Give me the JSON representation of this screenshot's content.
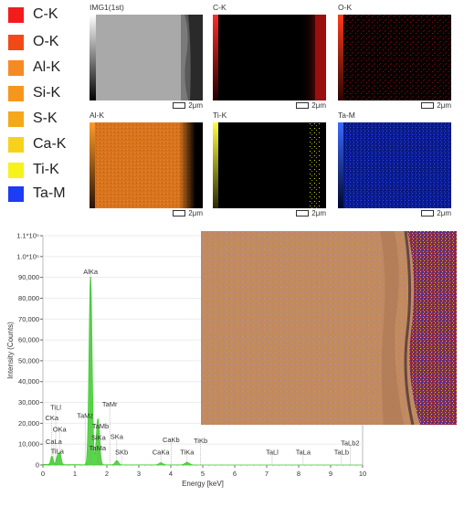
{
  "legend": [
    {
      "label": "C-K",
      "color": "#f21c1c"
    },
    {
      "label": "O-K",
      "color": "#f24a16"
    },
    {
      "label": "Al-K",
      "color": "#f58a24"
    },
    {
      "label": "Si-K",
      "color": "#f7961c"
    },
    {
      "label": "S-K",
      "color": "#f5a81c"
    },
    {
      "label": "Ca-K",
      "color": "#f7d21c"
    },
    {
      "label": "Ti-K",
      "color": "#f5f21c"
    },
    {
      "label": "Ta-M",
      "color": "#1c3cf5"
    }
  ],
  "maps": [
    {
      "title": "IMG1(1st)",
      "scale": "2μm"
    },
    {
      "title": "C-K",
      "scale": "2μm"
    },
    {
      "title": "O-K",
      "scale": "2μm"
    },
    {
      "title": "Al-K",
      "scale": "2μm"
    },
    {
      "title": "Ti-K",
      "scale": "2μm"
    },
    {
      "title": "Ta-M",
      "scale": "2μm"
    }
  ],
  "chart_data": {
    "type": "line",
    "xlabel": "Energy [keV]",
    "ylabel": "Intensity (Counts)",
    "xlim": [
      0,
      10
    ],
    "ylim": [
      0,
      110000
    ],
    "xticks": [
      "0",
      "1",
      "2",
      "3",
      "4",
      "5",
      "6",
      "7",
      "8",
      "9",
      "10"
    ],
    "yticks": [
      {
        "v": 0,
        "label": "0"
      },
      {
        "v": 10000,
        "label": "10,000"
      },
      {
        "v": 20000,
        "label": "20,000"
      },
      {
        "v": 30000,
        "label": "30,000"
      },
      {
        "v": 40000,
        "label": "40,000"
      },
      {
        "v": 50000,
        "label": "50,000"
      },
      {
        "v": 60000,
        "label": "60,000"
      },
      {
        "v": 70000,
        "label": "70,000"
      },
      {
        "v": 80000,
        "label": "80,000"
      },
      {
        "v": 90000,
        "label": "90,000"
      },
      {
        "v": 100000,
        "label": "1.0*10⁵"
      },
      {
        "v": 110000,
        "label": "1.1*10⁵"
      }
    ],
    "series": [
      {
        "color": "#3ccf2a",
        "peaks": [
          {
            "x": 0.28,
            "y": 4000
          },
          {
            "x": 0.45,
            "y": 3500
          },
          {
            "x": 0.53,
            "y": 5500
          },
          {
            "x": 1.49,
            "y": 90000
          },
          {
            "x": 1.71,
            "y": 15000
          },
          {
            "x": 1.74,
            "y": 8000
          },
          {
            "x": 2.31,
            "y": 2000
          },
          {
            "x": 3.69,
            "y": 1000
          },
          {
            "x": 4.51,
            "y": 1200
          }
        ]
      }
    ],
    "annotations": [
      {
        "text": "AlKa",
        "x": 1.49,
        "y": 91500
      },
      {
        "text": "TiLl",
        "x": 0.4,
        "y": 26500
      },
      {
        "text": "CKa",
        "x": 0.28,
        "y": 21500
      },
      {
        "text": "OKa",
        "x": 0.52,
        "y": 16000
      },
      {
        "text": "CaLa",
        "x": 0.34,
        "y": 10000
      },
      {
        "text": "TiLa",
        "x": 0.45,
        "y": 5500
      },
      {
        "text": "TaMz",
        "x": 1.32,
        "y": 22500
      },
      {
        "text": "TaMr",
        "x": 2.09,
        "y": 28000
      },
      {
        "text": "TaMb",
        "x": 1.8,
        "y": 17500
      },
      {
        "text": "SiKa",
        "x": 1.74,
        "y": 12000
      },
      {
        "text": "TaMa",
        "x": 1.71,
        "y": 7000
      },
      {
        "text": "SKa",
        "x": 2.31,
        "y": 12500
      },
      {
        "text": "SKb",
        "x": 2.46,
        "y": 5000
      },
      {
        "text": "CaKb",
        "x": 4.01,
        "y": 11000
      },
      {
        "text": "CaKa",
        "x": 3.69,
        "y": 5000
      },
      {
        "text": "TiKb",
        "x": 4.93,
        "y": 10500
      },
      {
        "text": "TiKa",
        "x": 4.51,
        "y": 5000
      },
      {
        "text": "TaLl",
        "x": 7.17,
        "y": 5000
      },
      {
        "text": "TaLa",
        "x": 8.14,
        "y": 5000
      },
      {
        "text": "TaLb2",
        "x": 9.61,
        "y": 9500
      },
      {
        "text": "TaLb",
        "x": 9.34,
        "y": 5000
      }
    ]
  }
}
